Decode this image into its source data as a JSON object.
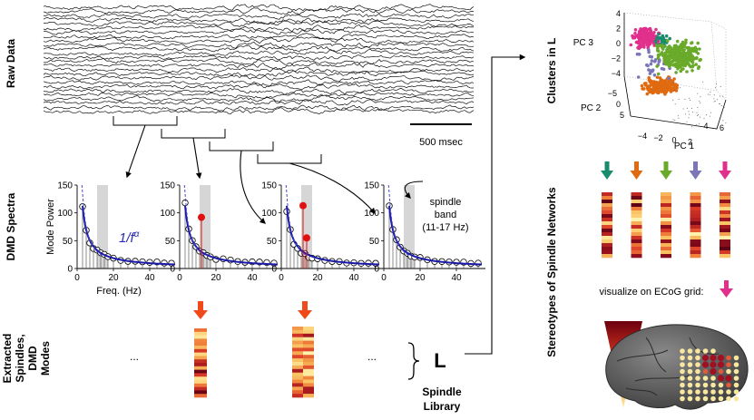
{
  "row_labels": {
    "raw": "Raw Data",
    "dmd": "DMD Spectra",
    "extracted": [
      "Extracted",
      "Spindles,",
      "DMD",
      "Modes"
    ]
  },
  "right_labels": {
    "clusters": "Clusters in L",
    "stereotypes": "Stereotypes of Spindle Networks"
  },
  "scale_bar": "500 msec",
  "spectrum": {
    "ylabel": "Mode Power",
    "xlabel": "Freq. (Hz)",
    "yticks": [
      "0",
      "50",
      "100",
      "150"
    ],
    "xticks": [
      "0",
      "20",
      "40"
    ],
    "powerlaw_base": "1/f",
    "powerlaw_exp": "α",
    "band_note": [
      "spindle",
      "band",
      "(11-17 Hz)"
    ]
  },
  "ellipsis": "...",
  "library_symbol": "L",
  "library_caption": [
    "Spindle",
    "Library"
  ],
  "ecog_caption": "visualize on ECoG grid:",
  "pca": {
    "pc1": "PC 1",
    "pc2": "PC 2",
    "pc3": "PC 3",
    "pc3_ticks": [
      "4",
      "2",
      "0",
      "−2",
      "−4"
    ],
    "pc2_ticks": [
      "−5",
      "0",
      "5"
    ],
    "pc1_ticks": [
      "−4",
      "−2",
      "0",
      "2",
      "4",
      "6"
    ]
  },
  "colors": {
    "cluster_green": "#1a8c6e",
    "cluster_orange": "#e06a10",
    "cluster_lime": "#6aaa2a",
    "cluster_purple": "#7b76b8",
    "cluster_magenta": "#e0308c",
    "arrow_red": "#f04a1a",
    "fit_blue": "#1a1aaa"
  }
}
